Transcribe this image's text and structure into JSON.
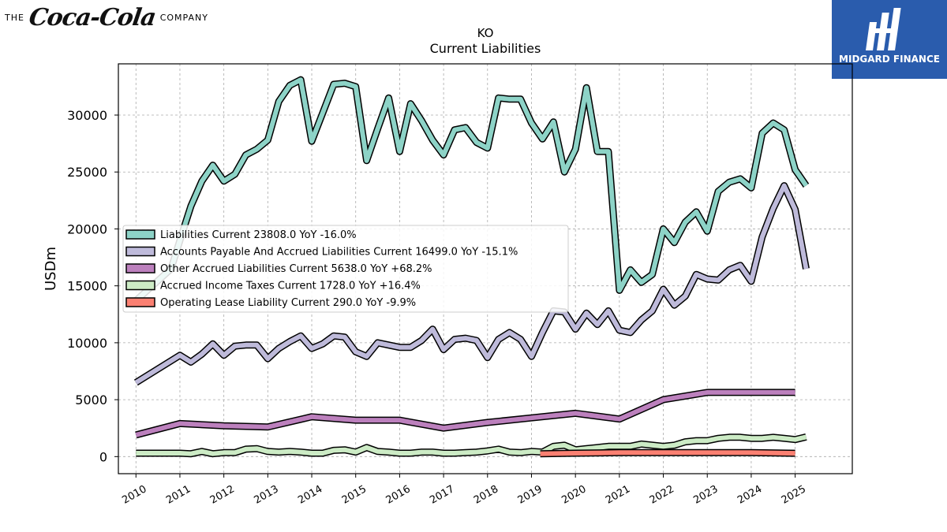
{
  "header": {
    "brand_left": {
      "prefix": "THE",
      "logo_script": "Coca-Cola",
      "suffix": "COMPANY"
    },
    "brand_right": {
      "text": "MIDGARD FINANCE",
      "bg_color": "#2a5cad"
    }
  },
  "chart_data": {
    "type": "line",
    "title": "KO",
    "subtitle": "Current  Liabilities",
    "ylabel": "USDm",
    "xlabel": "",
    "xlim": [
      2009.6,
      2026.3
    ],
    "ylim": [
      -1500,
      34500
    ],
    "x_ticks": [
      "2010",
      "2011",
      "2012",
      "2013",
      "2014",
      "2015",
      "2016",
      "2017",
      "2018",
      "2019",
      "2020",
      "2021",
      "2022",
      "2023",
      "2024",
      "2025"
    ],
    "y_ticks": [
      "0",
      "5000",
      "10000",
      "15000",
      "20000",
      "25000",
      "30000"
    ],
    "grid": true,
    "legend_position": "center-left",
    "series": [
      {
        "name": "Liabilities Current",
        "legend": "Liabilities Current  23808.0 YoY -16.0%",
        "color": "#8dd3c7",
        "points": [
          [
            2010.0,
            13700
          ],
          [
            2010.8,
            16500
          ],
          [
            2011.0,
            19000
          ],
          [
            2011.25,
            22000
          ],
          [
            2011.5,
            24200
          ],
          [
            2011.75,
            25600
          ],
          [
            2012.0,
            24200
          ],
          [
            2012.25,
            24800
          ],
          [
            2012.5,
            26500
          ],
          [
            2012.75,
            27000
          ],
          [
            2013.0,
            27800
          ],
          [
            2013.25,
            31200
          ],
          [
            2013.5,
            32600
          ],
          [
            2013.75,
            33100
          ],
          [
            2014.0,
            27700
          ],
          [
            2014.25,
            30200
          ],
          [
            2014.5,
            32700
          ],
          [
            2014.75,
            32800
          ],
          [
            2015.0,
            32500
          ],
          [
            2015.25,
            26000
          ],
          [
            2015.5,
            28800
          ],
          [
            2015.75,
            31500
          ],
          [
            2016.0,
            26800
          ],
          [
            2016.25,
            31000
          ],
          [
            2016.5,
            29500
          ],
          [
            2016.75,
            27800
          ],
          [
            2017.0,
            26500
          ],
          [
            2017.25,
            28700
          ],
          [
            2017.5,
            28900
          ],
          [
            2017.75,
            27600
          ],
          [
            2018.0,
            27100
          ],
          [
            2018.25,
            31500
          ],
          [
            2018.5,
            31400
          ],
          [
            2018.75,
            31400
          ],
          [
            2019.0,
            29300
          ],
          [
            2019.25,
            27900
          ],
          [
            2019.5,
            29400
          ],
          [
            2019.75,
            25000
          ],
          [
            2020.0,
            27000
          ],
          [
            2020.25,
            32400
          ],
          [
            2020.5,
            26800
          ],
          [
            2020.75,
            26800
          ],
          [
            2021.0,
            14600
          ],
          [
            2021.25,
            16400
          ],
          [
            2021.5,
            15300
          ],
          [
            2021.75,
            16000
          ],
          [
            2022.0,
            20000
          ],
          [
            2022.25,
            18800
          ],
          [
            2022.5,
            20600
          ],
          [
            2022.75,
            21500
          ],
          [
            2023.0,
            19800
          ],
          [
            2023.25,
            23300
          ],
          [
            2023.5,
            24100
          ],
          [
            2023.75,
            24400
          ],
          [
            2024.0,
            23600
          ],
          [
            2024.25,
            28400
          ],
          [
            2024.5,
            29300
          ],
          [
            2024.75,
            28700
          ],
          [
            2025.0,
            25200
          ],
          [
            2025.25,
            23808
          ]
        ]
      },
      {
        "name": "Accounts Payable And Accrued Liabilities Current",
        "legend": "Accounts Payable And Accrued Liabilities Current  16499.0 YoY -15.1%",
        "color": "#bebada",
        "points": [
          [
            2010.0,
            6500
          ],
          [
            2011.0,
            8900
          ],
          [
            2011.25,
            8300
          ],
          [
            2011.5,
            9000
          ],
          [
            2011.75,
            9900
          ],
          [
            2012.0,
            8900
          ],
          [
            2012.25,
            9700
          ],
          [
            2012.5,
            9800
          ],
          [
            2012.75,
            9800
          ],
          [
            2013.0,
            8600
          ],
          [
            2013.25,
            9500
          ],
          [
            2013.5,
            10100
          ],
          [
            2013.75,
            10600
          ],
          [
            2014.0,
            9500
          ],
          [
            2014.25,
            9900
          ],
          [
            2014.5,
            10600
          ],
          [
            2014.75,
            10500
          ],
          [
            2015.0,
            9200
          ],
          [
            2015.25,
            8800
          ],
          [
            2015.5,
            10000
          ],
          [
            2015.75,
            9800
          ],
          [
            2016.0,
            9600
          ],
          [
            2016.25,
            9600
          ],
          [
            2016.5,
            10200
          ],
          [
            2016.75,
            11200
          ],
          [
            2017.0,
            9400
          ],
          [
            2017.25,
            10300
          ],
          [
            2017.5,
            10400
          ],
          [
            2017.75,
            10200
          ],
          [
            2018.0,
            8700
          ],
          [
            2018.25,
            10300
          ],
          [
            2018.5,
            10900
          ],
          [
            2018.75,
            10300
          ],
          [
            2019.0,
            8800
          ],
          [
            2019.25,
            10900
          ],
          [
            2019.5,
            12800
          ],
          [
            2019.75,
            12700
          ],
          [
            2020.0,
            11200
          ],
          [
            2020.25,
            12600
          ],
          [
            2020.5,
            11600
          ],
          [
            2020.75,
            12800
          ],
          [
            2021.0,
            11100
          ],
          [
            2021.25,
            10900
          ],
          [
            2021.5,
            12000
          ],
          [
            2021.75,
            12800
          ],
          [
            2022.0,
            14700
          ],
          [
            2022.25,
            13300
          ],
          [
            2022.5,
            14100
          ],
          [
            2022.75,
            16000
          ],
          [
            2023.0,
            15600
          ],
          [
            2023.25,
            15500
          ],
          [
            2023.5,
            16400
          ],
          [
            2023.75,
            16800
          ],
          [
            2024.0,
            15400
          ],
          [
            2024.25,
            19300
          ],
          [
            2024.5,
            21800
          ],
          [
            2024.75,
            23800
          ],
          [
            2025.0,
            21700
          ],
          [
            2025.25,
            16499
          ]
        ]
      },
      {
        "name": "Other Accrued Liabilities Current",
        "legend": "Other Accrued Liabilities Current  5638.0 YoY +68.2%",
        "color": "#bc80bd",
        "points": [
          [
            2010.0,
            1900
          ],
          [
            2011.0,
            2900
          ],
          [
            2012.0,
            2700
          ],
          [
            2013.0,
            2600
          ],
          [
            2014.0,
            3500
          ],
          [
            2015.0,
            3200
          ],
          [
            2016.0,
            3200
          ],
          [
            2017.0,
            2500
          ],
          [
            2018.0,
            3000
          ],
          [
            2019.0,
            3400
          ],
          [
            2020.0,
            3800
          ],
          [
            2021.0,
            3300
          ],
          [
            2022.0,
            5000
          ],
          [
            2023.0,
            5638
          ],
          [
            2024.0,
            5638
          ],
          [
            2025.0,
            5638
          ]
        ]
      },
      {
        "name": "Accrued Income Taxes Current",
        "legend": "Accrued Income Taxes Current  1728.0 YoY +16.4%",
        "color": "#ccebc5",
        "points": [
          [
            2010.0,
            300
          ],
          [
            2010.5,
            300
          ],
          [
            2011.0,
            300
          ],
          [
            2011.25,
            250
          ],
          [
            2011.5,
            450
          ],
          [
            2011.75,
            250
          ],
          [
            2012.0,
            350
          ],
          [
            2012.25,
            350
          ],
          [
            2012.5,
            650
          ],
          [
            2012.75,
            700
          ],
          [
            2013.0,
            450
          ],
          [
            2013.25,
            400
          ],
          [
            2013.5,
            450
          ],
          [
            2013.75,
            400
          ],
          [
            2014.0,
            300
          ],
          [
            2014.25,
            300
          ],
          [
            2014.5,
            550
          ],
          [
            2014.75,
            600
          ],
          [
            2015.0,
            400
          ],
          [
            2015.25,
            800
          ],
          [
            2015.5,
            450
          ],
          [
            2015.75,
            400
          ],
          [
            2016.0,
            300
          ],
          [
            2016.25,
            300
          ],
          [
            2016.5,
            400
          ],
          [
            2016.75,
            400
          ],
          [
            2017.0,
            300
          ],
          [
            2017.25,
            300
          ],
          [
            2017.5,
            350
          ],
          [
            2017.75,
            400
          ],
          [
            2018.0,
            500
          ],
          [
            2018.25,
            650
          ],
          [
            2018.5,
            400
          ],
          [
            2018.75,
            350
          ],
          [
            2019.0,
            450
          ],
          [
            2019.25,
            400
          ],
          [
            2019.5,
            900
          ],
          [
            2019.75,
            1000
          ],
          [
            2020.0,
            600
          ],
          [
            2020.25,
            700
          ],
          [
            2020.5,
            800
          ],
          [
            2020.75,
            900
          ],
          [
            2021.0,
            900
          ],
          [
            2021.25,
            900
          ],
          [
            2021.5,
            1100
          ],
          [
            2021.75,
            1000
          ],
          [
            2022.0,
            900
          ],
          [
            2022.25,
            1000
          ],
          [
            2022.5,
            1300
          ],
          [
            2022.75,
            1400
          ],
          [
            2023.0,
            1400
          ],
          [
            2023.25,
            1600
          ],
          [
            2023.5,
            1700
          ],
          [
            2023.75,
            1700
          ],
          [
            2024.0,
            1600
          ],
          [
            2024.25,
            1600
          ],
          [
            2024.5,
            1700
          ],
          [
            2024.75,
            1600
          ],
          [
            2025.0,
            1500
          ],
          [
            2025.25,
            1728
          ]
        ]
      },
      {
        "name": "Operating Lease Liability Current",
        "legend": "Operating Lease Liability Current  290.0 YoY -9.9%",
        "color": "#fb8072",
        "points": [
          [
            2019.2,
            250
          ],
          [
            2020.0,
            300
          ],
          [
            2021.0,
            350
          ],
          [
            2022.0,
            350
          ],
          [
            2023.0,
            350
          ],
          [
            2024.0,
            350
          ],
          [
            2025.0,
            290
          ]
        ]
      }
    ]
  }
}
